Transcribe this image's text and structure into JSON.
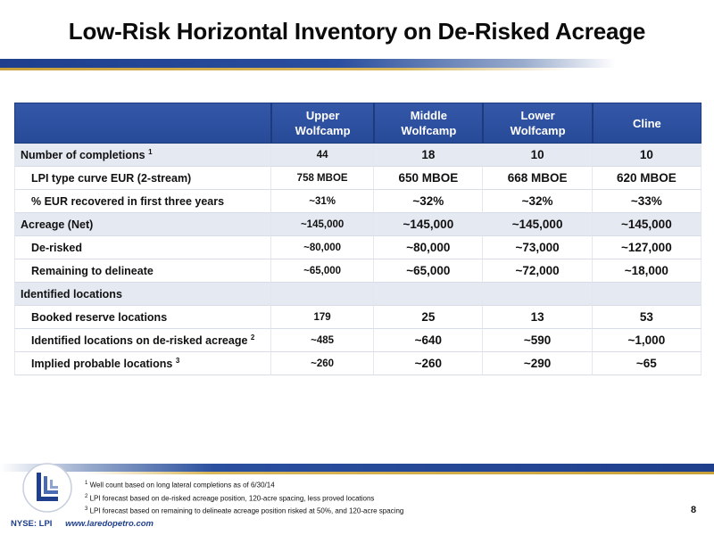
{
  "title": "Low-Risk Horizontal Inventory on De-Risked Acreage",
  "table": {
    "columns": [
      {
        "line1": "Upper",
        "line2": "Wolfcamp"
      },
      {
        "line1": "Middle",
        "line2": "Wolfcamp"
      },
      {
        "line1": "Lower",
        "line2": "Wolfcamp"
      },
      {
        "line1": "Cline",
        "line2": ""
      }
    ],
    "rows": [
      {
        "label": "Number of completions",
        "sup": "1",
        "values": [
          "44",
          "18",
          "10",
          "10"
        ]
      },
      {
        "label": "LPI type curve EUR (2-stream)",
        "sup": "",
        "values": [
          "758 MBOE",
          "650 MBOE",
          "668 MBOE",
          "620 MBOE"
        ]
      },
      {
        "label": "% EUR recovered in first three years",
        "sup": "",
        "values": [
          "~31%",
          "~32%",
          "~32%",
          "~33%"
        ]
      },
      {
        "label": "Acreage (Net)",
        "sup": "",
        "values": [
          "~145,000",
          "~145,000",
          "~145,000",
          "~145,000"
        ]
      },
      {
        "label": "De-risked",
        "sup": "",
        "values": [
          "~80,000",
          "~80,000",
          "~73,000",
          "~127,000"
        ]
      },
      {
        "label": "Remaining to delineate",
        "sup": "",
        "values": [
          "~65,000",
          "~65,000",
          "~72,000",
          "~18,000"
        ]
      },
      {
        "label": "Identified locations",
        "sup": "",
        "values": [
          "",
          "",
          "",
          ""
        ]
      },
      {
        "label": "Booked reserve locations",
        "sup": "",
        "values": [
          "179",
          "25",
          "13",
          "53"
        ]
      },
      {
        "label": "Identified locations on de-risked acreage",
        "sup": "2",
        "values": [
          "~485",
          "~640",
          "~590",
          "~1,000"
        ]
      },
      {
        "label": "Implied probable locations",
        "sup": "3",
        "values": [
          "~260",
          "~260",
          "~290",
          "~65"
        ]
      }
    ]
  },
  "footnotes": [
    {
      "num": "1",
      "text": "Well count based on long lateral completions as of 6/30/14"
    },
    {
      "num": "2",
      "text": "LPI forecast based on de-risked acreage position, 120-acre spacing, less proved locations"
    },
    {
      "num": "3",
      "text": "LPI forecast based on remaining to delineate acreage position risked at 50%, and 120-acre spacing"
    }
  ],
  "page_number": "8",
  "footer": {
    "ticker": "NYSE: LPI",
    "url": "www.laredopetro.com"
  },
  "colors": {
    "header_blue": "#274a98",
    "accent_gold": "#c9a13a",
    "row_shade": "#e5e9f2"
  }
}
